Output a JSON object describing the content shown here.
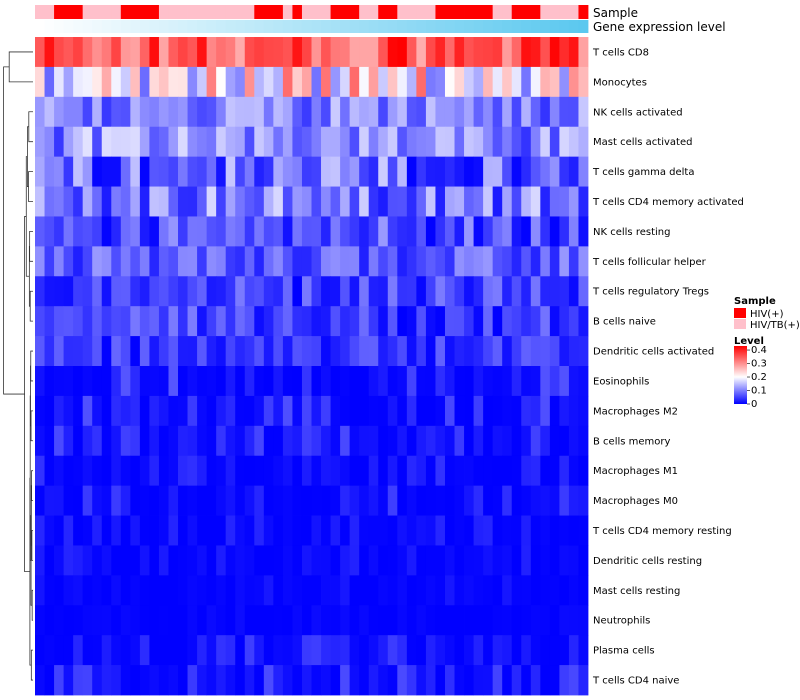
{
  "chart_data": {
    "type": "heatmap",
    "annotation_labels": {
      "sample": "Sample",
      "gene": "Gene expression level"
    },
    "legend": {
      "sample_title": "Sample",
      "sample_items": [
        {
          "name": "HIV(+)",
          "color": "#ff0000"
        },
        {
          "name": "HIV/TB(+)",
          "color": "#ffc0cb"
        }
      ],
      "level_title": "Level",
      "level_ticks": [
        "0.4",
        "0.3",
        "0.2",
        "0.1",
        "0"
      ],
      "level_tick_values": [
        0.4,
        0.3,
        0.2,
        0.1,
        0
      ],
      "range": [
        0,
        0.43
      ],
      "colors": {
        "low": "#0000ff",
        "mid": "#ffffff",
        "high": "#ff0000",
        "mid_value": 0.2
      }
    },
    "sample_groups": [
      1,
      1,
      0,
      0,
      0,
      1,
      1,
      1,
      1,
      0,
      0,
      0,
      0,
      1,
      1,
      1,
      1,
      1,
      1,
      1,
      1,
      1,
      1,
      0,
      0,
      0,
      1,
      0,
      1,
      1,
      1,
      0,
      0,
      0,
      1,
      1,
      0,
      0,
      1,
      1,
      1,
      1,
      0,
      0,
      0,
      0,
      0,
      0,
      1,
      1,
      0,
      0,
      0,
      1,
      1,
      1,
      1,
      0
    ],
    "gene_expression_gradient": [
      "#ffffff",
      "#5bc8ef"
    ],
    "rows": [
      "T cells CD8",
      "Monocytes",
      "NK cells activated",
      "Mast cells activated",
      "T cells gamma delta",
      "T cells CD4 memory activated",
      "NK cells resting",
      "T cells follicular helper",
      "T cells regulatory  Tregs",
      "B cells naive",
      "Dendritic cells activated",
      "Eosinophils",
      "Macrophages M2",
      "B cells memory",
      "Macrophages M1",
      "Macrophages M0",
      "T cells CD4 memory resting",
      "Dendritic cells resting",
      "Mast cells resting",
      "Neutrophils",
      "Plasma cells",
      "T cells CD4 naive"
    ],
    "row_ranges": [
      [
        0.26,
        0.43
      ],
      [
        0.08,
        0.34
      ],
      [
        0.04,
        0.16
      ],
      [
        0.04,
        0.18
      ],
      [
        0.0,
        0.16
      ],
      [
        0.02,
        0.17
      ],
      [
        0.0,
        0.12
      ],
      [
        0.02,
        0.12
      ],
      [
        0.0,
        0.1
      ],
      [
        0.0,
        0.1
      ],
      [
        0.0,
        0.08
      ],
      [
        0.0,
        0.07
      ],
      [
        0.0,
        0.07
      ],
      [
        0.0,
        0.06
      ],
      [
        0.0,
        0.04
      ],
      [
        0.0,
        0.05
      ],
      [
        0.0,
        0.03
      ],
      [
        0.0,
        0.03
      ],
      [
        0.0,
        0.02
      ],
      [
        0.0,
        0.01
      ],
      [
        0.0,
        0.05
      ],
      [
        0.0,
        0.06
      ]
    ],
    "n_samples": 58
  }
}
